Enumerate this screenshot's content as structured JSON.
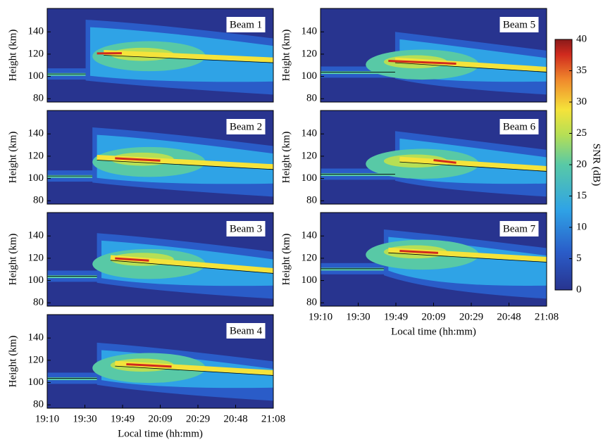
{
  "chart_data": [
    {
      "type": "contour",
      "title": "Beam 1",
      "ylabel": "Height (km)",
      "ylim": [
        77,
        161
      ],
      "yticks": [
        80,
        100,
        120,
        140
      ]
    },
    {
      "type": "contour",
      "title": "Beam 2",
      "ylabel": "Height (km)",
      "ylim": [
        77,
        161
      ],
      "yticks": [
        80,
        100,
        120,
        140
      ]
    },
    {
      "type": "contour",
      "title": "Beam 3",
      "ylabel": "Height (km)",
      "ylim": [
        77,
        161
      ],
      "yticks": [
        80,
        100,
        120,
        140
      ]
    },
    {
      "type": "contour",
      "title": "Beam 4",
      "ylabel": "Height (km)",
      "xlabel": "Local time (hh:mm)",
      "ylim": [
        77,
        161
      ],
      "yticks": [
        80,
        100,
        120,
        140
      ],
      "xticks": [
        "19:10",
        "19:30",
        "19:49",
        "20:09",
        "20:29",
        "20:48",
        "21:08"
      ]
    },
    {
      "type": "contour",
      "title": "Beam 5",
      "ylabel": "Height (km)",
      "ylim": [
        77,
        161
      ],
      "yticks": [
        80,
        100,
        120,
        140
      ]
    },
    {
      "type": "contour",
      "title": "Beam 6",
      "ylabel": "Height (km)",
      "ylim": [
        77,
        161
      ],
      "yticks": [
        80,
        100,
        120,
        140
      ]
    },
    {
      "type": "contour",
      "title": "Beam 7",
      "ylabel": "Height (km)",
      "xlabel": "Local time (hh:mm)",
      "ylim": [
        77,
        161
      ],
      "yticks": [
        80,
        100,
        120,
        140
      ],
      "xticks": [
        "19:10",
        "19:30",
        "19:49",
        "20:09",
        "20:29",
        "20:48",
        "21:08"
      ]
    },
    {
      "type": "colorbar",
      "label": "SNR (dB)",
      "ylim": [
        0,
        40
      ],
      "yticks": [
        0,
        5,
        10,
        15,
        20,
        25,
        30,
        35,
        40
      ]
    }
  ]
}
